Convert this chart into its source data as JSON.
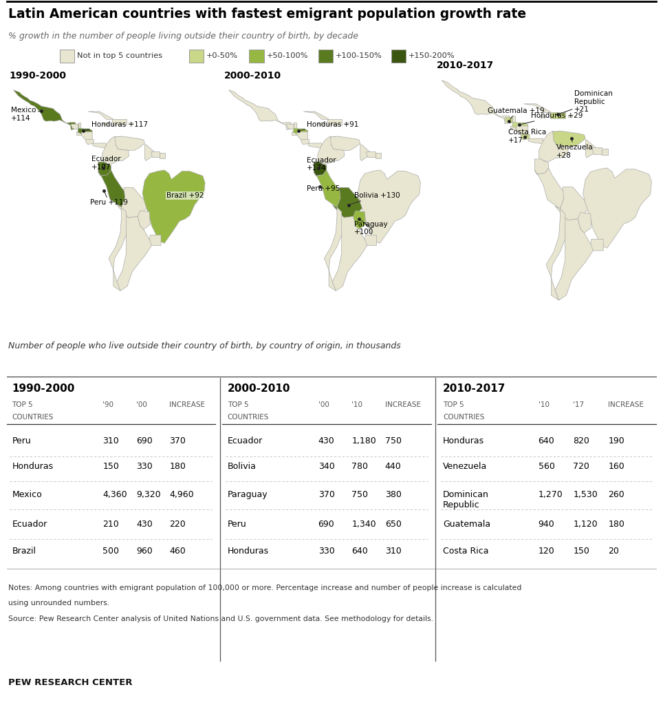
{
  "title": "Latin American countries with fastest emigrant population growth rate",
  "subtitle": "% growth in the number of people living outside their country of birth, by decade",
  "legend_labels": [
    "Not in top 5 countries",
    "+0-50%",
    "+50-100%",
    "+100-150%",
    "+150-200%"
  ],
  "color_not_in_top5": "#e8e6d0",
  "color_0_50": "#c8d888",
  "color_50_100": "#96b842",
  "color_100_150": "#5a7a20",
  "color_150_200": "#3a5510",
  "background_color": "#ffffff",
  "table_section_title": "Number of people who live outside their country of birth, by country of origin, in thousands",
  "tables": [
    {
      "period": "1990-2000",
      "col1": "'90",
      "col2": "'00",
      "col3": "INCREASE",
      "rows": [
        [
          "Peru",
          "310",
          "690",
          "370"
        ],
        [
          "Honduras",
          "150",
          "330",
          "180"
        ],
        [
          "Mexico",
          "4,360",
          "9,320",
          "4,960"
        ],
        [
          "Ecuador",
          "210",
          "430",
          "220"
        ],
        [
          "Brazil",
          "500",
          "960",
          "460"
        ]
      ]
    },
    {
      "period": "2000-2010",
      "col1": "'00",
      "col2": "'10",
      "col3": "INCREASE",
      "rows": [
        [
          "Ecuador",
          "430",
          "1,180",
          "750"
        ],
        [
          "Bolivia",
          "340",
          "780",
          "440"
        ],
        [
          "Paraguay",
          "370",
          "750",
          "380"
        ],
        [
          "Peru",
          "690",
          "1,340",
          "650"
        ],
        [
          "Honduras",
          "330",
          "640",
          "310"
        ]
      ]
    },
    {
      "period": "2010-2017",
      "col1": "'10",
      "col2": "'17",
      "col3": "INCREASE",
      "rows": [
        [
          "Honduras",
          "640",
          "820",
          "190"
        ],
        [
          "Venezuela",
          "560",
          "720",
          "160"
        ],
        [
          "Dominican\nRepublic",
          "1,270",
          "1,530",
          "260"
        ],
        [
          "Guatemala",
          "940",
          "1,120",
          "180"
        ],
        [
          "Costa Rica",
          "120",
          "150",
          "20"
        ]
      ]
    }
  ],
  "notes_line1": "Notes: Among countries with emigrant population of 100,000 or more. Percentage increase and number of people increase is calculated",
  "notes_line2": "using unrounded numbers.",
  "notes_line3": "Source: Pew Research Center analysis of United Nations and U.S. government data. See methodology for details.",
  "footer": "PEW RESEARCH CENTER"
}
